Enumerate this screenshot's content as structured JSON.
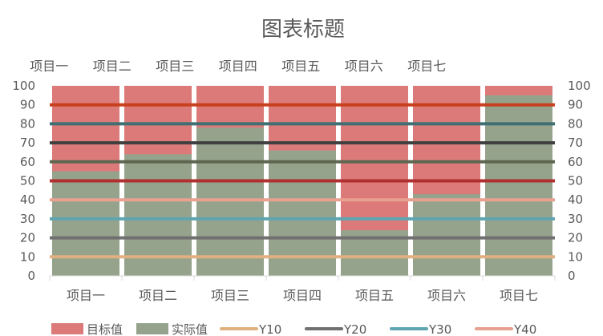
{
  "chart_data": {
    "type": "bar",
    "title": "图表标题",
    "categories": [
      "项目一",
      "项目二",
      "项目三",
      "项目四",
      "项目五",
      "项目六",
      "项目七"
    ],
    "top_categories": [
      "项目一",
      "项目二",
      "项目三",
      "项目四",
      "项目五",
      "项目六",
      "项目七"
    ],
    "ylim": [
      0,
      100
    ],
    "y_ticks": [
      "0",
      "10",
      "20",
      "30",
      "40",
      "50",
      "60",
      "70",
      "80",
      "90",
      "100"
    ],
    "series": [
      {
        "name": "目标值",
        "values": [
          100,
          100,
          100,
          100,
          100,
          100,
          100
        ],
        "color": "#DC7A7A"
      },
      {
        "name": "实际值",
        "values": [
          55,
          64,
          78,
          66,
          24,
          43,
          95
        ],
        "color": "#95A38C"
      }
    ],
    "lines": [
      {
        "name": "Y10",
        "value": 10,
        "color": "#E0B080"
      },
      {
        "name": "Y20",
        "value": 20,
        "color": "#707070"
      },
      {
        "name": "Y30",
        "value": 30,
        "color": "#5FA5B0"
      },
      {
        "name": "Y40",
        "value": 40,
        "color": "#E8A090"
      },
      {
        "name": "",
        "value": 50,
        "color": "#B03030"
      },
      {
        "name": "",
        "value": 60,
        "color": "#5E6650"
      },
      {
        "name": "",
        "value": 70,
        "color": "#404040"
      },
      {
        "name": "",
        "value": 80,
        "color": "#3F6F72"
      },
      {
        "name": "",
        "value": 90,
        "color": "#C8401E"
      }
    ],
    "legend": {
      "position": "bottom"
    },
    "grid": false
  }
}
